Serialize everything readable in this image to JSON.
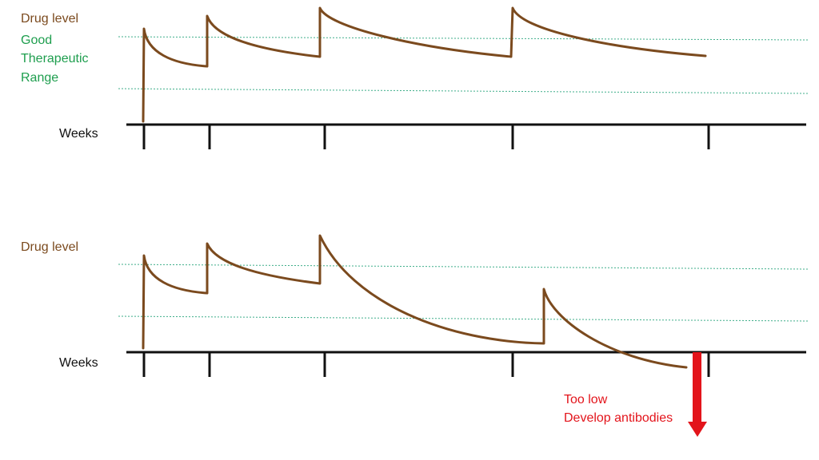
{
  "colors": {
    "curve": "#7B4A1E",
    "range_lines": "#3FAE8A",
    "axis": "#111111",
    "range_text": "#1E9E4E",
    "warning": "#E3141B"
  },
  "top_panel": {
    "ylabel": "Drug level",
    "range_label": [
      "Good",
      "Therapeutic",
      "Range"
    ],
    "xlabel": "Weeks"
  },
  "bottom_panel": {
    "ylabel": "Drug level",
    "xlabel": "Weeks",
    "annotation": [
      "Too low",
      "Develop antibodies"
    ],
    "arrow_icon": "down-arrow-icon"
  }
}
